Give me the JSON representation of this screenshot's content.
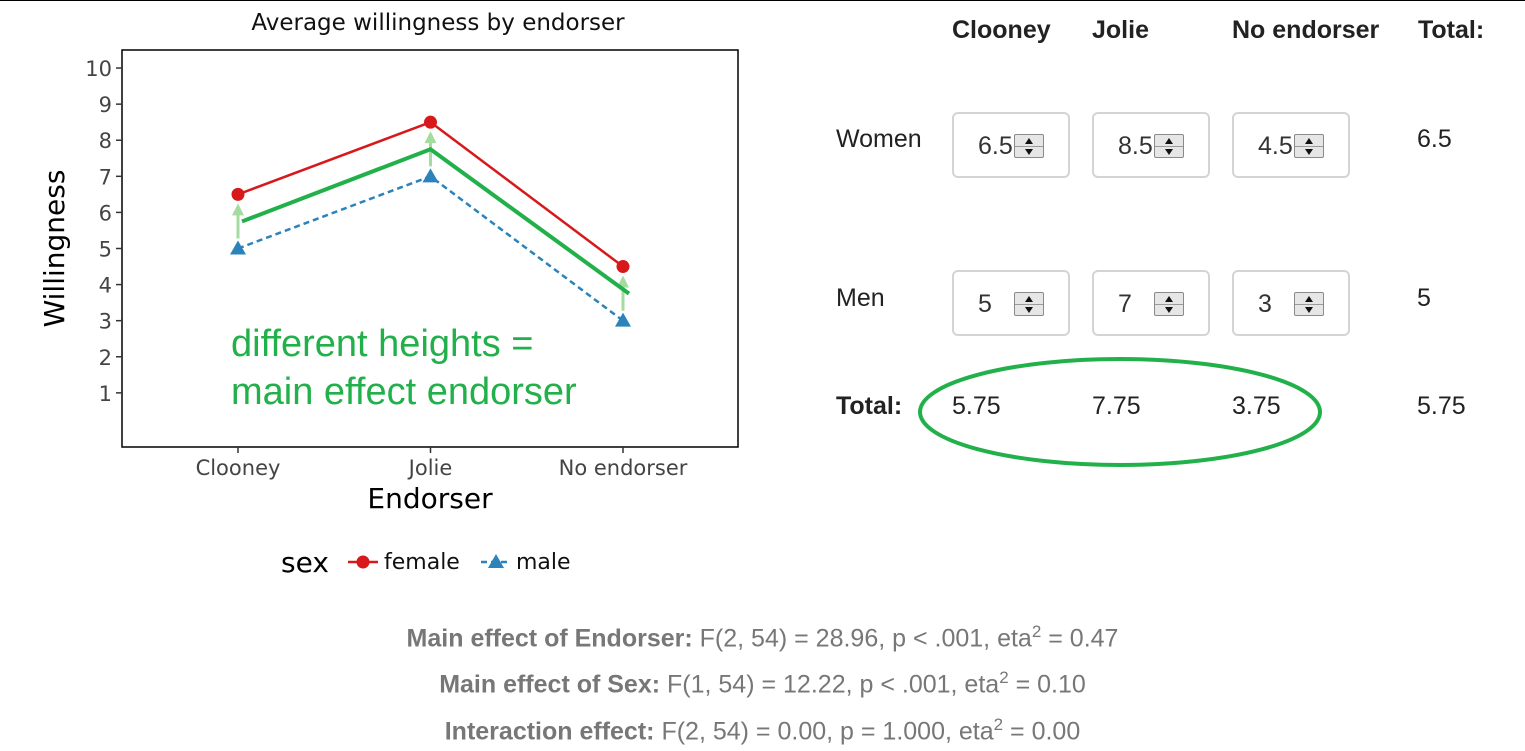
{
  "chart_data": {
    "type": "line",
    "title": "Average willingness by endorser",
    "xlabel": "Endorser",
    "ylabel": "Willingness",
    "categories": [
      "Clooney",
      "Jolie",
      "No endorser"
    ],
    "yticks": [
      "1",
      "2",
      "3",
      "4",
      "5",
      "6",
      "7",
      "8",
      "9",
      "10"
    ],
    "ylim": [
      -0.5,
      10.5
    ],
    "series": [
      {
        "name": "female",
        "values": [
          6.5,
          8.5,
          4.5
        ],
        "color": "#d7191c",
        "marker": "circle",
        "dash": "solid"
      },
      {
        "name": "male",
        "values": [
          5,
          7,
          3
        ],
        "color": "#2b83ba",
        "marker": "triangle",
        "dash": "dashed"
      }
    ],
    "marginal_means": {
      "values": [
        5.75,
        7.75,
        3.75
      ],
      "color": "#22b04a"
    },
    "arrow_color": "#a6dba0",
    "legend": {
      "title": "sex",
      "placement": "bottom"
    },
    "annotation": [
      "different heights =",
      "main effect endorser"
    ],
    "annotation_color": "#22b04a",
    "grid": false
  },
  "table": {
    "columns": [
      "Clooney",
      "Jolie",
      "No endorser",
      "Total:"
    ],
    "rows": [
      {
        "label": "Women",
        "values": [
          "6.5",
          "8.5",
          "4.5"
        ],
        "total": "6.5"
      },
      {
        "label": "Men",
        "values": [
          "5",
          "7",
          "3"
        ],
        "total": "5"
      }
    ],
    "totals_row": {
      "label": "Total:",
      "values": [
        "5.75",
        "7.75",
        "3.75"
      ],
      "total": "5.75"
    },
    "highlight_color": "#22b04a"
  },
  "stats": [
    {
      "label": "Main effect of Endorser:",
      "text": "F(2, 54) = 28.96, p < .001, eta",
      "sup": "2",
      "tail": " = 0.47"
    },
    {
      "label": "Main effect of Sex:",
      "text": "F(1, 54) = 12.22, p < .001, eta",
      "sup": "2",
      "tail": " = 0.10"
    },
    {
      "label": "Interaction effect:",
      "text": "F(2, 54) = 0.00, p = 1.000, eta",
      "sup": "2",
      "tail": " = 0.00"
    }
  ]
}
